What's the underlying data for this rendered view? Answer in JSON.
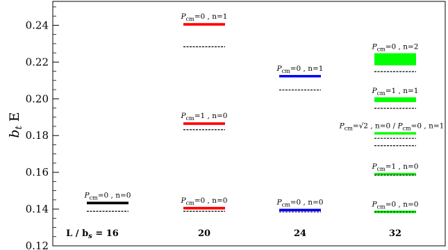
{
  "chart_data": {
    "type": "level-diagram",
    "ylabel_main": "b",
    "ylabel_sub": "t",
    "ylabel_suffix": " E",
    "ylim": [
      0.12,
      0.253
    ],
    "yticks": [
      0.12,
      0.14,
      0.16,
      0.18,
      0.2,
      0.22,
      0.24
    ],
    "ytick_labels": [
      "0.12",
      "0.14",
      "0.16",
      "0.18",
      "0.20",
      "0.22",
      "0.24"
    ],
    "grid": false,
    "groups": [
      {
        "label": "L / b",
        "label_sub": "s",
        "label_suffix": " = 16",
        "color": "#000000",
        "levels": [
          {
            "label": "P_cm=0 , n=0",
            "e": 0.1433,
            "err": 0.0007,
            "free": 0.1388
          }
        ]
      },
      {
        "label": "20",
        "color": "#ff0000",
        "levels": [
          {
            "label": "P_cm=0 , n=0",
            "e": 0.1405,
            "err": 0.0007,
            "free": 0.1388
          },
          {
            "label": "P_cm=1 , n=0",
            "e": 0.1865,
            "err": 0.0007,
            "free": 0.1832
          },
          {
            "label": "P_cm=0 , n=1",
            "e": 0.2405,
            "err": 0.0007,
            "free": 0.2283
          }
        ]
      },
      {
        "label": "24",
        "color": "#0000ff",
        "levels": [
          {
            "label": "P_cm=0 , n=0",
            "e": 0.1395,
            "err": 0.0005,
            "free": 0.1385
          },
          {
            "label": "P_cm=0 , n=1",
            "e": 0.2123,
            "err": 0.0005,
            "free": 0.2048
          }
        ]
      },
      {
        "label": "32",
        "color": "#00ff00",
        "levels": [
          {
            "label": "P_cm=0 , n=0",
            "e": 0.1385,
            "err": 0.0004,
            "free": 0.1385
          },
          {
            "label": "P_cm=1 , n=0",
            "e": 0.159,
            "err": 0.0004,
            "free": 0.1585
          },
          {
            "label": "P_cm=√2 , n=0 /  P_cm=0 , n=1",
            "e": 0.1812,
            "err": 0.0004,
            "free": 0.1785,
            "free2": 0.1745
          },
          {
            "label": "P_cm=1 , n=1",
            "e": 0.1995,
            "err": 0.0013,
            "free": 0.1948
          },
          {
            "label": "P_cm=0 , n=2",
            "e": 0.2215,
            "err": 0.0033,
            "free": 0.2148
          }
        ]
      }
    ]
  }
}
